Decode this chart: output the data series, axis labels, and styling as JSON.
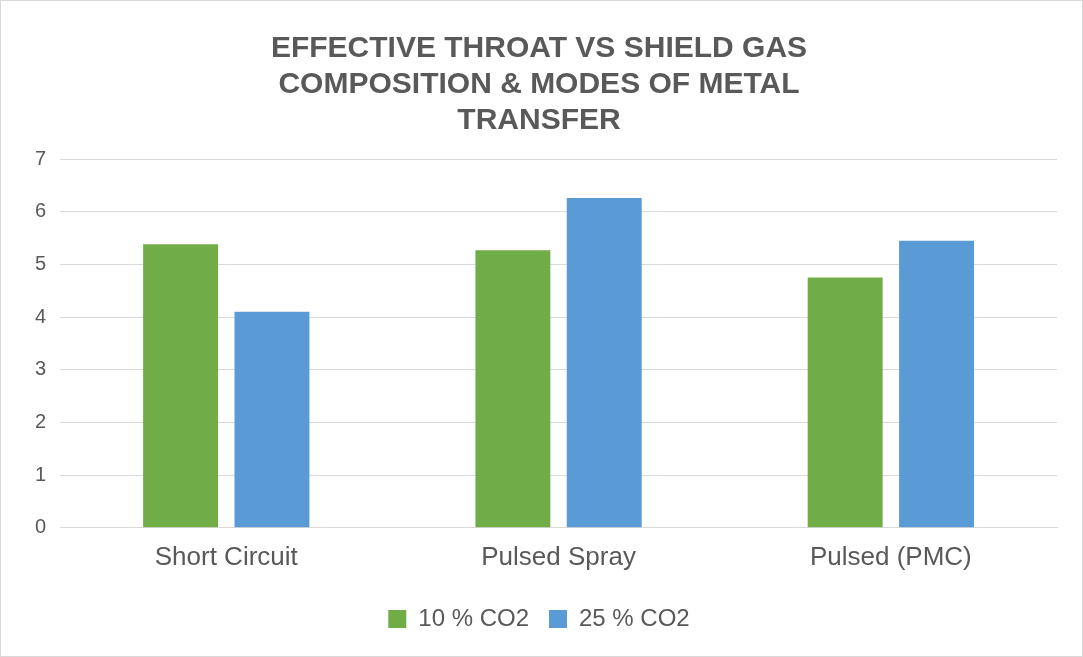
{
  "chart_data": {
    "type": "bar",
    "title": "EFFECTIVE THROAT VS SHIELD GAS COMPOSITION & MODES OF METAL TRANSFER",
    "categories": [
      "Short Circuit",
      "Pulsed Spray",
      "Pulsed (PMC)"
    ],
    "series": [
      {
        "name": "10 % CO2",
        "color": "#70ad47",
        "values": [
          5.38,
          5.27,
          4.75
        ]
      },
      {
        "name": "25 % CO2",
        "color": "#5b9bd5",
        "values": [
          4.1,
          6.26,
          5.45
        ]
      }
    ],
    "ylim": [
      0,
      7
    ],
    "yticks": [
      0,
      1,
      2,
      3,
      4,
      5,
      6,
      7
    ],
    "grid": "y",
    "legend": "bottom"
  }
}
